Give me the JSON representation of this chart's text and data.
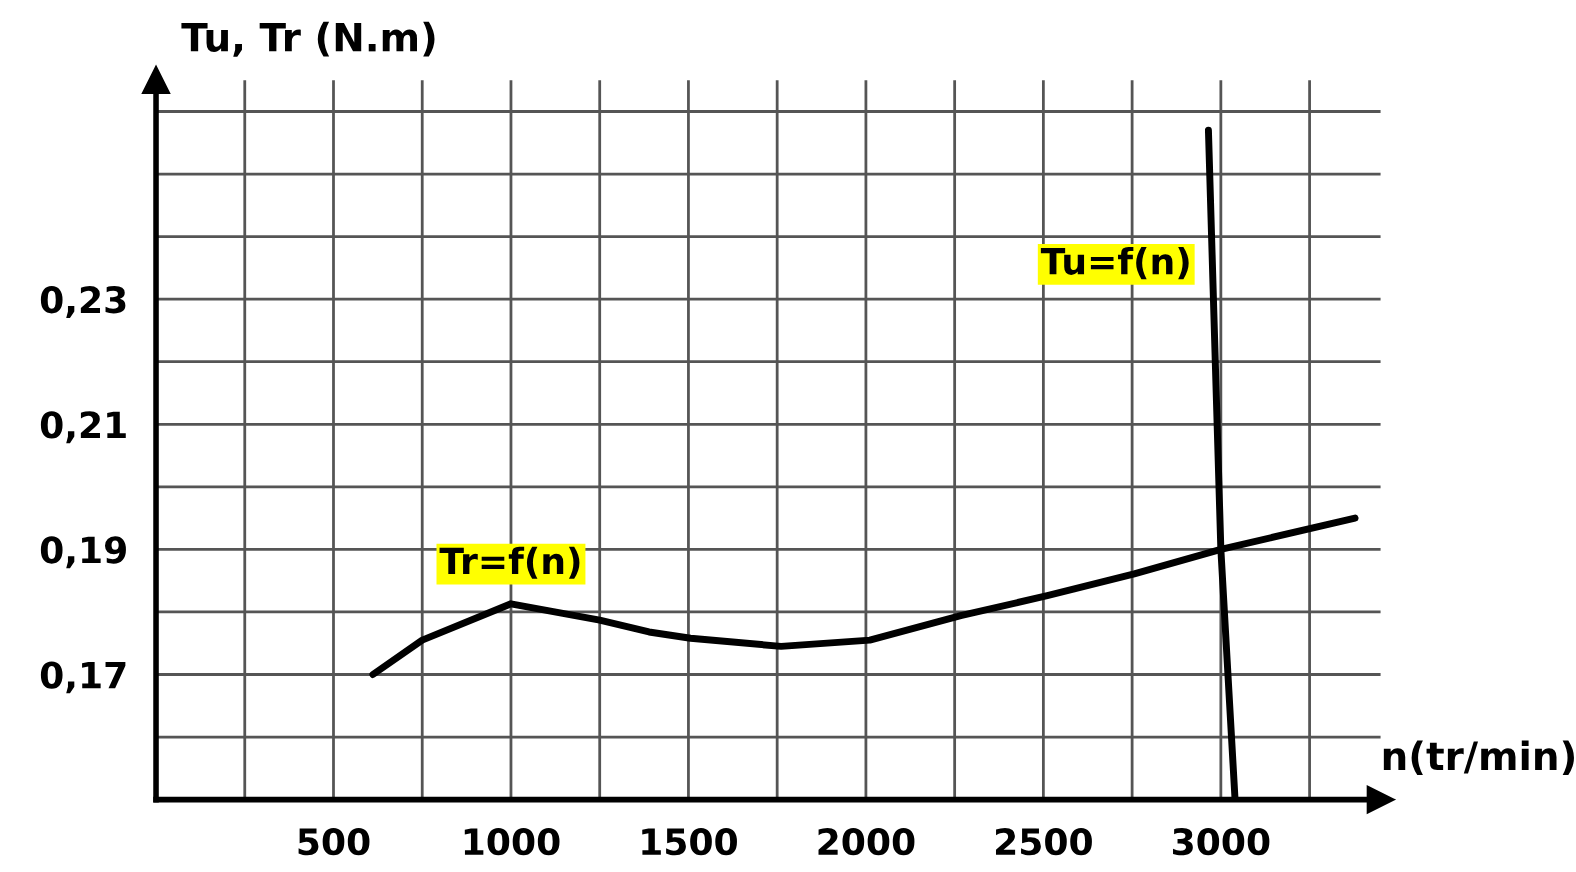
{
  "chart_data": {
    "type": "line",
    "xlabel": "n(tr/min)",
    "ylabel": "Tu, Tr (N.m)",
    "xlim": [
      0,
      3450
    ],
    "ylim": [
      0.15,
      0.265
    ],
    "xticks": [
      {
        "value": 250,
        "label": null
      },
      500,
      {
        "value": 750,
        "label": null
      },
      1000,
      {
        "value": 1250,
        "label": null
      },
      1500,
      {
        "value": 1750,
        "label": null
      },
      2000,
      {
        "value": 2250,
        "label": null
      },
      2500,
      {
        "value": 2750,
        "label": null
      },
      3000,
      {
        "value": 3250,
        "label": null
      }
    ],
    "yticks": [
      {
        "value": 0.16,
        "label": null
      },
      {
        "value": 0.17,
        "label": "0,17"
      },
      {
        "value": 0.18,
        "label": null
      },
      {
        "value": 0.19,
        "label": "0,19"
      },
      {
        "value": 0.2,
        "label": null
      },
      {
        "value": 0.21,
        "label": "0,21"
      },
      {
        "value": 0.22,
        "label": null
      },
      {
        "value": 0.23,
        "label": "0,23"
      },
      {
        "value": 0.24,
        "label": null
      },
      {
        "value": 0.25,
        "label": null
      },
      {
        "value": 0.26,
        "label": null
      }
    ],
    "grid": true,
    "marker": "none",
    "line_style": "solid",
    "series": [
      {
        "name": "Tr=f(n)",
        "color": "#000000",
        "x": [
          611,
          750,
          1000,
          1250,
          1389,
          1506,
          1761,
          2011,
          2267,
          2511,
          2756,
          3000,
          3378
        ],
        "values": [
          0.17,
          0.1755,
          0.1813,
          0.1787,
          0.1768,
          0.1758,
          0.1745,
          0.1755,
          0.1794,
          0.1826,
          0.1861,
          0.19,
          0.195
        ]
      },
      {
        "name": "Tu=f(n)",
        "color": "#000000",
        "x": [
          2965,
          3000,
          3040
        ],
        "values": [
          0.257,
          0.19,
          0.15
        ]
      }
    ]
  }
}
